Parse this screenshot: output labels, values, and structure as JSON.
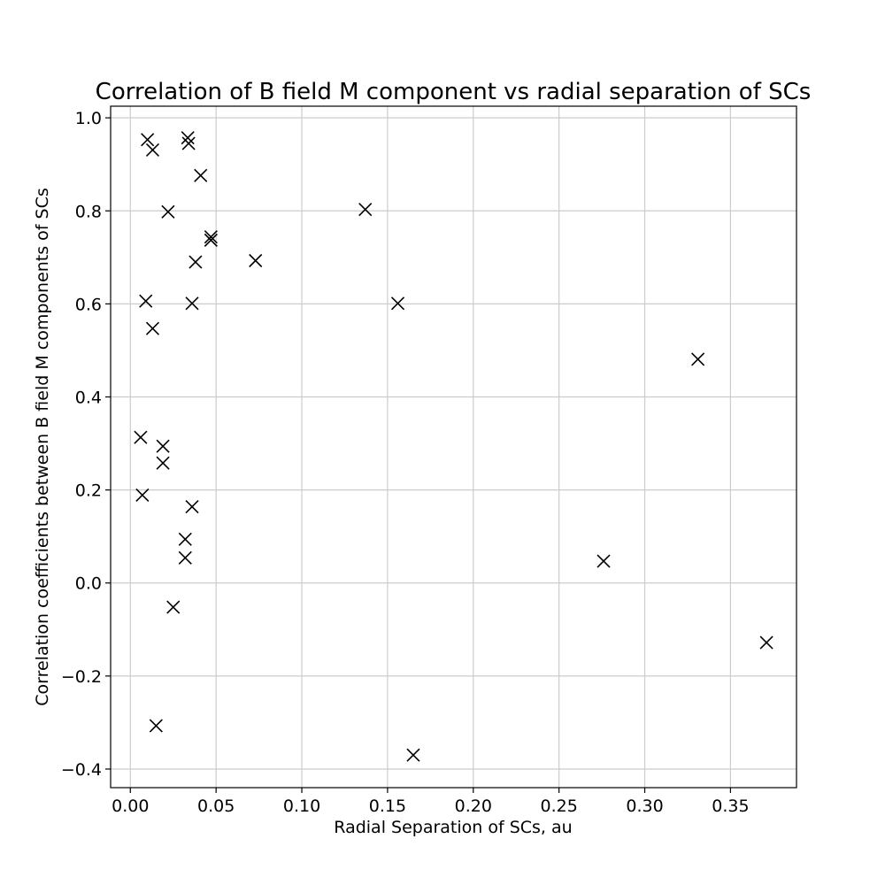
{
  "chart_data": {
    "type": "scatter",
    "title": "Correlation of B field M component vs radial separation of SCs",
    "xlabel": "Radial Separation of SCs, au",
    "ylabel": "Correlation coefficients between B field M components of SCs",
    "xlim": [
      -0.0115,
      0.3885
    ],
    "ylim": [
      -0.44,
      1.025
    ],
    "grid": true,
    "marker": "x",
    "marker_color": "#000000",
    "x_ticks": [
      0.0,
      0.05,
      0.1,
      0.15,
      0.2,
      0.25,
      0.3,
      0.35
    ],
    "x_tick_labels": [
      "0.00",
      "0.05",
      "0.10",
      "0.15",
      "0.20",
      "0.25",
      "0.30",
      "0.35"
    ],
    "y_ticks": [
      -0.4,
      -0.2,
      0.0,
      0.2,
      0.4,
      0.6,
      0.8,
      1.0
    ],
    "y_tick_labels": [
      "−0.4",
      "−0.2",
      "0.0",
      "0.2",
      "0.4",
      "0.6",
      "0.8",
      "1.0"
    ],
    "points": [
      {
        "x": 0.01,
        "y": 0.953
      },
      {
        "x": 0.013,
        "y": 0.931
      },
      {
        "x": 0.0335,
        "y": 0.957
      },
      {
        "x": 0.034,
        "y": 0.945
      },
      {
        "x": 0.041,
        "y": 0.876
      },
      {
        "x": 0.022,
        "y": 0.798
      },
      {
        "x": 0.047,
        "y": 0.744
      },
      {
        "x": 0.047,
        "y": 0.737
      },
      {
        "x": 0.038,
        "y": 0.69
      },
      {
        "x": 0.073,
        "y": 0.693
      },
      {
        "x": 0.137,
        "y": 0.803
      },
      {
        "x": 0.009,
        "y": 0.606
      },
      {
        "x": 0.036,
        "y": 0.601
      },
      {
        "x": 0.156,
        "y": 0.601
      },
      {
        "x": 0.013,
        "y": 0.547
      },
      {
        "x": 0.331,
        "y": 0.481
      },
      {
        "x": 0.006,
        "y": 0.313
      },
      {
        "x": 0.019,
        "y": 0.294
      },
      {
        "x": 0.019,
        "y": 0.258
      },
      {
        "x": 0.007,
        "y": 0.189
      },
      {
        "x": 0.036,
        "y": 0.164
      },
      {
        "x": 0.032,
        "y": 0.094
      },
      {
        "x": 0.032,
        "y": 0.054
      },
      {
        "x": 0.276,
        "y": 0.047
      },
      {
        "x": 0.025,
        "y": -0.052
      },
      {
        "x": 0.371,
        "y": -0.128
      },
      {
        "x": 0.015,
        "y": -0.307
      },
      {
        "x": 0.165,
        "y": -0.37
      }
    ]
  }
}
